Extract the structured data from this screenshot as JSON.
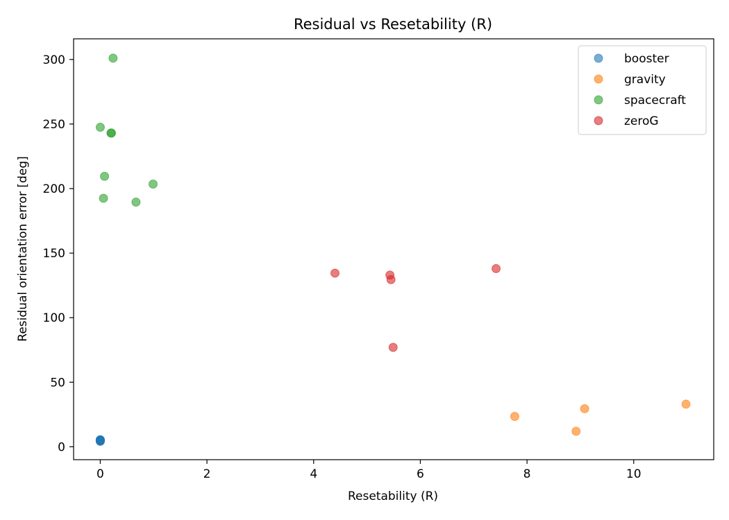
{
  "chart_data": {
    "type": "scatter",
    "title": "Residual vs Resetability (R)",
    "xlabel": "Resetability (R)",
    "ylabel": "Residual orientation error [deg]",
    "xlim": [
      -0.5,
      11.5
    ],
    "ylim": [
      -10,
      316
    ],
    "xticks": [
      0,
      2,
      4,
      6,
      8,
      10
    ],
    "yticks": [
      0,
      50,
      100,
      150,
      200,
      250,
      300
    ],
    "grid": false,
    "legend_position": "top-right",
    "marker_alpha": 0.6,
    "series": [
      {
        "name": "booster",
        "color": "#1f77b4",
        "points": [
          [
            0.0,
            4.5
          ],
          [
            0.0,
            4.8
          ],
          [
            0.0,
            5.0
          ],
          [
            0.0,
            5.2
          ],
          [
            0.0,
            5.5
          ],
          [
            0.0,
            4.2
          ]
        ]
      },
      {
        "name": "gravity",
        "color": "#ff7f0e",
        "points": [
          [
            7.77,
            23.5
          ],
          [
            8.92,
            12.0
          ],
          [
            9.08,
            29.5
          ],
          [
            10.98,
            33.0
          ]
        ]
      },
      {
        "name": "spacecraft",
        "color": "#2ca02c",
        "points": [
          [
            0.24,
            301.0
          ],
          [
            0.0,
            247.5
          ],
          [
            0.2,
            243.0
          ],
          [
            0.21,
            243.0
          ],
          [
            0.08,
            209.5
          ],
          [
            0.06,
            192.5
          ],
          [
            0.67,
            189.5
          ],
          [
            0.99,
            203.5
          ]
        ]
      },
      {
        "name": "zeroG",
        "color": "#d62728",
        "points": [
          [
            4.4,
            134.5
          ],
          [
            5.43,
            133.0
          ],
          [
            5.45,
            129.5
          ],
          [
            5.49,
            77.0
          ],
          [
            7.42,
            138.0
          ]
        ]
      }
    ]
  }
}
